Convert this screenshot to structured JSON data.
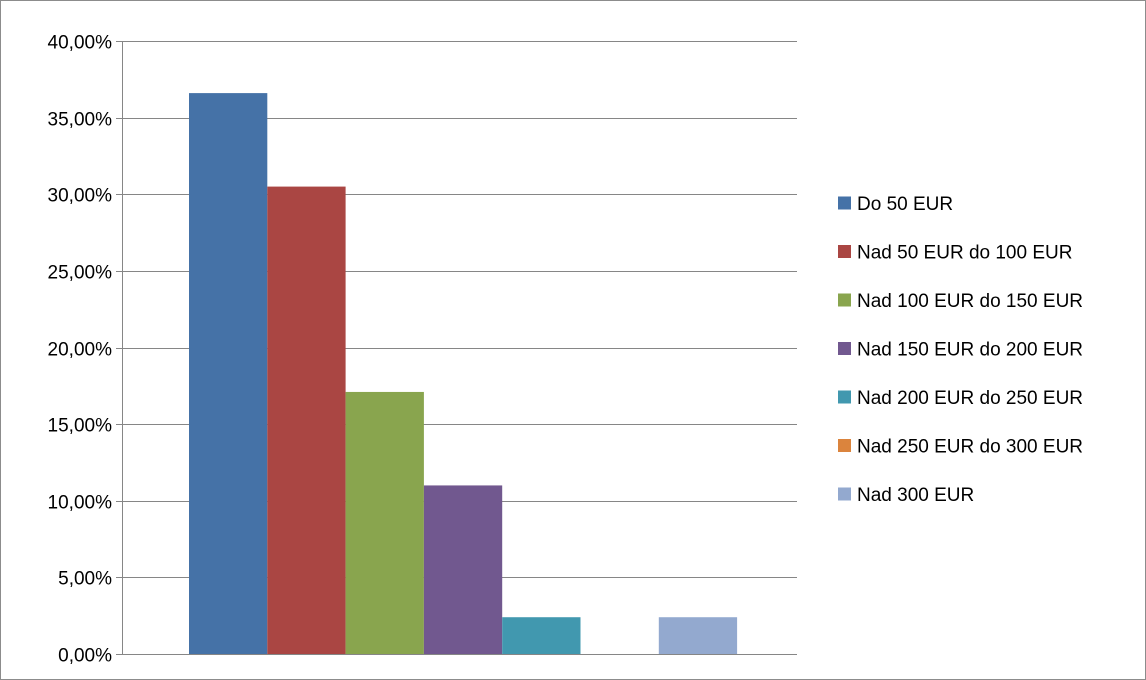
{
  "chart_data": {
    "type": "bar",
    "categories": [
      ""
    ],
    "series": [
      {
        "name": "Do 50 EUR",
        "values": [
          36.6
        ],
        "color": "#4572a7"
      },
      {
        "name": "Nad 50 EUR do 100 EUR",
        "values": [
          30.5
        ],
        "color": "#aa4643"
      },
      {
        "name": "Nad 100 EUR do 150 EUR",
        "values": [
          17.1
        ],
        "color": "#89a54e"
      },
      {
        "name": "Nad 150 EUR do 200 EUR",
        "values": [
          11.0
        ],
        "color": "#71588f"
      },
      {
        "name": "Nad 200 EUR do 250 EUR",
        "values": [
          2.4
        ],
        "color": "#4198af"
      },
      {
        "name": "Nad 250 EUR do 300 EUR",
        "values": [
          0
        ],
        "color": "#db843d"
      },
      {
        "name": "Nad 300 EUR",
        "values": [
          2.4
        ],
        "color": "#93a9cf"
      }
    ],
    "ylim": [
      0,
      40
    ],
    "y_ticks": [
      {
        "value": 0,
        "label": "0,00%"
      },
      {
        "value": 5,
        "label": "5,00%"
      },
      {
        "value": 10,
        "label": "10,00%"
      },
      {
        "value": 15,
        "label": "15,00%"
      },
      {
        "value": 20,
        "label": "20,00%"
      },
      {
        "value": 25,
        "label": "25,00%"
      },
      {
        "value": 30,
        "label": "30,00%"
      },
      {
        "value": 35,
        "label": "35,00%"
      },
      {
        "value": 40,
        "label": "40,00%"
      }
    ],
    "title": "",
    "xlabel": "",
    "ylabel": "",
    "grid": true,
    "legend_position": "right"
  }
}
